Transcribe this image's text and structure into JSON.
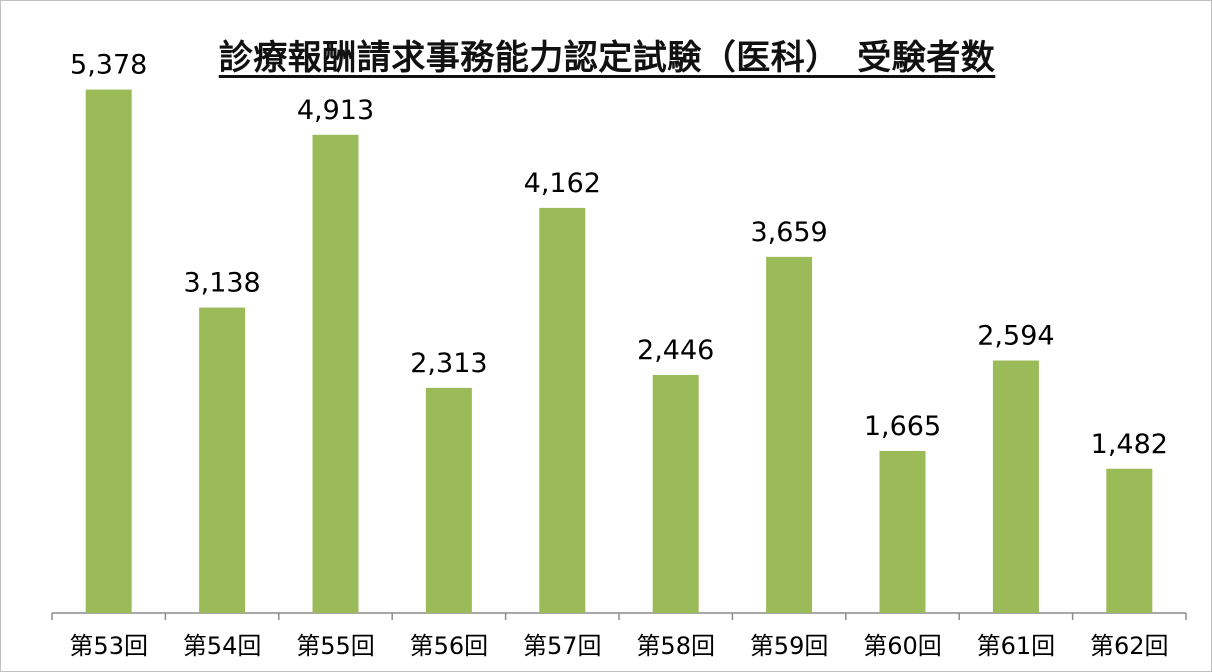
{
  "chart_data": {
    "type": "bar",
    "title": "診療報酬請求事務能力認定試験（医科）　受験者数",
    "xlabel": "",
    "ylabel": "",
    "categories": [
      "第53回",
      "第54回",
      "第55回",
      "第56回",
      "第57回",
      "第58回",
      "第59回",
      "第60回",
      "第61回",
      "第62回"
    ],
    "values": [
      5378,
      3138,
      4913,
      2313,
      4162,
      2446,
      3659,
      1665,
      2594,
      1482
    ],
    "value_labels": [
      "5,378",
      "3,138",
      "4,913",
      "2,313",
      "4,162",
      "2,446",
      "3,659",
      "1,665",
      "2,594",
      "1,482"
    ],
    "ylim": [
      0,
      6000
    ],
    "bar_color": "#9bbb59",
    "axis_color": "#8c8c8c",
    "grid": false,
    "legend": "none",
    "data_labels": "above-bars"
  }
}
